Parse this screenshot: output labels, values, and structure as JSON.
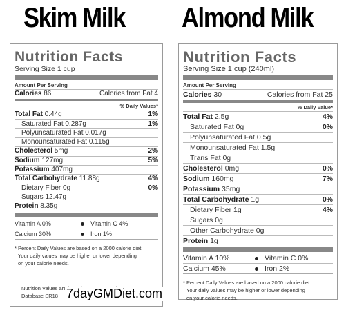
{
  "left": {
    "heading": "Skim Milk",
    "title": "Nutrition Facts",
    "serving": "Serving Size 1 cup",
    "amount_per_serving": "Amount Per Serving",
    "calories": {
      "label": "Calories",
      "value": "86",
      "from_fat": "Calories from Fat 4"
    },
    "dv_header": "% Daily Values*",
    "rows": [
      {
        "label": "Total Fat",
        "value": "0.44g",
        "dv": "1%",
        "bold": true,
        "indent": false
      },
      {
        "label": "Saturated Fat",
        "value": "0.287g",
        "dv": "1%",
        "bold": false,
        "indent": true
      },
      {
        "label": "Polyunsaturated Fat",
        "value": "0.017g",
        "dv": "",
        "bold": false,
        "indent": true
      },
      {
        "label": "Monounsaturated Fat",
        "value": "0.115g",
        "dv": "",
        "bold": false,
        "indent": true
      },
      {
        "label": "Cholesterol",
        "value": "5mg",
        "dv": "2%",
        "bold": true,
        "indent": false
      },
      {
        "label": "Sodium",
        "value": "127mg",
        "dv": "5%",
        "bold": true,
        "indent": false
      },
      {
        "label": "Potassium",
        "value": "407mg",
        "dv": "",
        "bold": true,
        "indent": false
      },
      {
        "label": "Total Carbohydrate",
        "value": "11.88g",
        "dv": "4%",
        "bold": true,
        "indent": false
      },
      {
        "label": "Dietary Fiber",
        "value": "0g",
        "dv": "0%",
        "bold": false,
        "indent": true
      },
      {
        "label": "Sugars",
        "value": "12.47g",
        "dv": "",
        "bold": false,
        "indent": true
      },
      {
        "label": "Protein",
        "value": "8.35g",
        "dv": "",
        "bold": true,
        "indent": false
      }
    ],
    "vitamins": [
      {
        "a": "Vitamin A 0%",
        "b": "Vitamin C 4%"
      },
      {
        "a": "Calcium 30%",
        "b": "Iron 1%"
      }
    ],
    "footnote_1": "* Percent Daily Values are based on a 2000 calorie diet.",
    "footnote_2": "Your daily values may be higher or lower depending",
    "footnote_3": "on your calorie needs.",
    "usda_1": "Nutrition Values are based on USDA Nutrient",
    "usda_2": "Database SR18"
  },
  "right": {
    "heading": "Almond Milk",
    "title": "Nutrition Facts",
    "serving": "Serving Size 1 cup (240ml)",
    "amount_per_serving": "Amount Per Serving",
    "calories": {
      "label": "Calories",
      "value": "30",
      "from_fat": "Calories from Fat 25"
    },
    "dv_header": "% Daily Value*",
    "rows": [
      {
        "label": "Total Fat",
        "value": "2.5g",
        "dv": "4%",
        "bold": true,
        "indent": false
      },
      {
        "label": "Saturated Fat",
        "value": "0g",
        "dv": "0%",
        "bold": false,
        "indent": true
      },
      {
        "label": "Polyunsaturated Fat",
        "value": "0.5g",
        "dv": "",
        "bold": false,
        "indent": true
      },
      {
        "label": "Monounsaturated Fat",
        "value": "1.5g",
        "dv": "",
        "bold": false,
        "indent": true
      },
      {
        "label": "Trans Fat",
        "value": "0g",
        "dv": "",
        "bold": false,
        "indent": true
      },
      {
        "label": "Cholesterol",
        "value": "0mg",
        "dv": "0%",
        "bold": true,
        "indent": false
      },
      {
        "label": "Sodium",
        "value": "160mg",
        "dv": "7%",
        "bold": true,
        "indent": false
      },
      {
        "label": "Potassium",
        "value": "35mg",
        "dv": "",
        "bold": true,
        "indent": false
      },
      {
        "label": "Total Carbohydrate",
        "value": "1g",
        "dv": "0%",
        "bold": true,
        "indent": false
      },
      {
        "label": "Dietary Fiber",
        "value": "1g",
        "dv": "4%",
        "bold": false,
        "indent": true
      },
      {
        "label": "Sugars",
        "value": "0g",
        "dv": "",
        "bold": false,
        "indent": true
      },
      {
        "label": "Other Carbohydrate",
        "value": "0g",
        "dv": "",
        "bold": false,
        "indent": true
      },
      {
        "label": "Protein",
        "value": "1g",
        "dv": "",
        "bold": true,
        "indent": false
      }
    ],
    "vitamins": [
      {
        "a": "Vitamin A 10%",
        "b": "Vitamin C 0%"
      },
      {
        "a": "Calcium 45%",
        "b": "Iron 2%"
      }
    ],
    "footnote_1": "* Percent Daily Values are based on a 2000 calorie diet.",
    "footnote_2": "Your daily values may be higher or lower depending",
    "footnote_3": "on your calorie needs."
  },
  "brand": "7dayGMDiet.com"
}
